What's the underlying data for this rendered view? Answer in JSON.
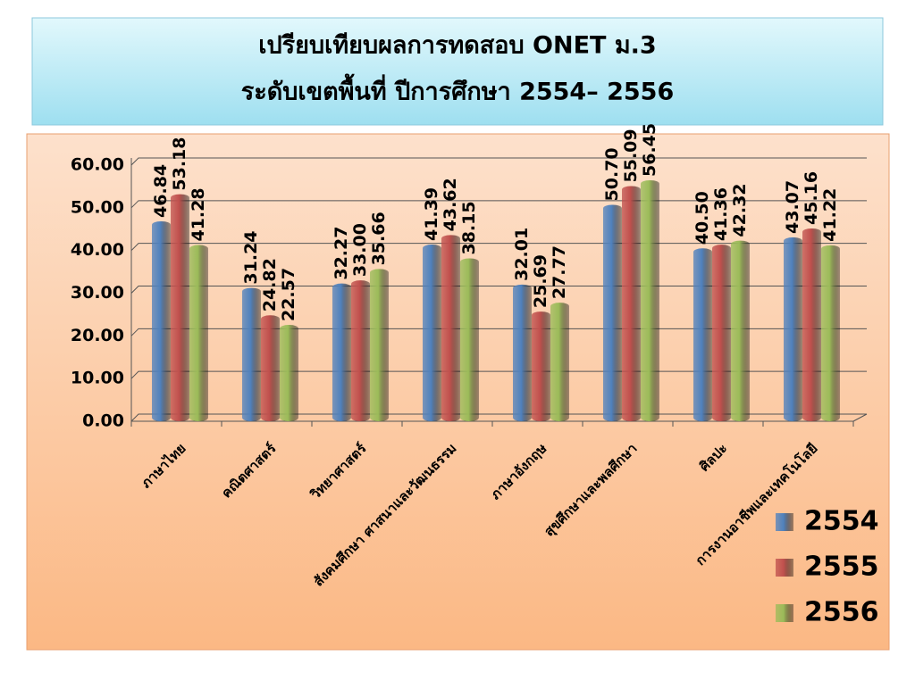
{
  "chart_data": {
    "type": "bar",
    "title": "เปรียบเทียบผลการทดสอบ ONET ม.3",
    "subtitle": "ระดับเขตพื้นที่ ปีการศึกษา 2554– 2556",
    "categories": [
      "ภาษาไทย",
      "คณิตศาสตร์",
      "วิทยาศาสตร์",
      "สังคมศึกษา ศาสนาและวัฒนธรรม",
      "ภาษาอังกฤษ",
      "สุขศึกษาและพลศึกษา",
      "ศิลปะ",
      "การงานอาชีพและเทคโนโลยี"
    ],
    "series": [
      {
        "name": "2554",
        "color": "#4f81bd",
        "values": [
          46.84,
          31.24,
          32.27,
          41.39,
          32.01,
          50.7,
          40.5,
          43.07
        ],
        "value_labels": [
          "46.84",
          "31.24",
          "32.27",
          "41.39",
          "32.01",
          "50.70",
          "40.50",
          "43.07"
        ]
      },
      {
        "name": "2555",
        "color": "#c0504d",
        "values": [
          53.18,
          24.82,
          33.0,
          43.62,
          25.69,
          55.09,
          41.36,
          45.16
        ],
        "value_labels": [
          "53.18",
          "24.82",
          "33.00",
          "43.62",
          "25.69",
          "55.09",
          "41.36",
          "45.16"
        ]
      },
      {
        "name": "2556",
        "color": "#9bbb59",
        "values": [
          41.28,
          22.57,
          35.66,
          38.15,
          27.77,
          56.45,
          42.32,
          41.22
        ],
        "value_labels": [
          "41.28",
          "22.57",
          "35.66",
          "38.15",
          "27.77",
          "56.45",
          "42.32",
          "41.22"
        ]
      }
    ],
    "ylim": [
      0,
      60
    ],
    "yticks": [
      {
        "value": 0,
        "label": "0.00"
      },
      {
        "value": 10,
        "label": "10.00"
      },
      {
        "value": 20,
        "label": "20.00"
      },
      {
        "value": 30,
        "label": "30.00"
      },
      {
        "value": 40,
        "label": "40.00"
      },
      {
        "value": 50,
        "label": "50.00"
      },
      {
        "value": 60,
        "label": "60.00"
      }
    ],
    "grid": true,
    "legend": "bottom-right"
  }
}
